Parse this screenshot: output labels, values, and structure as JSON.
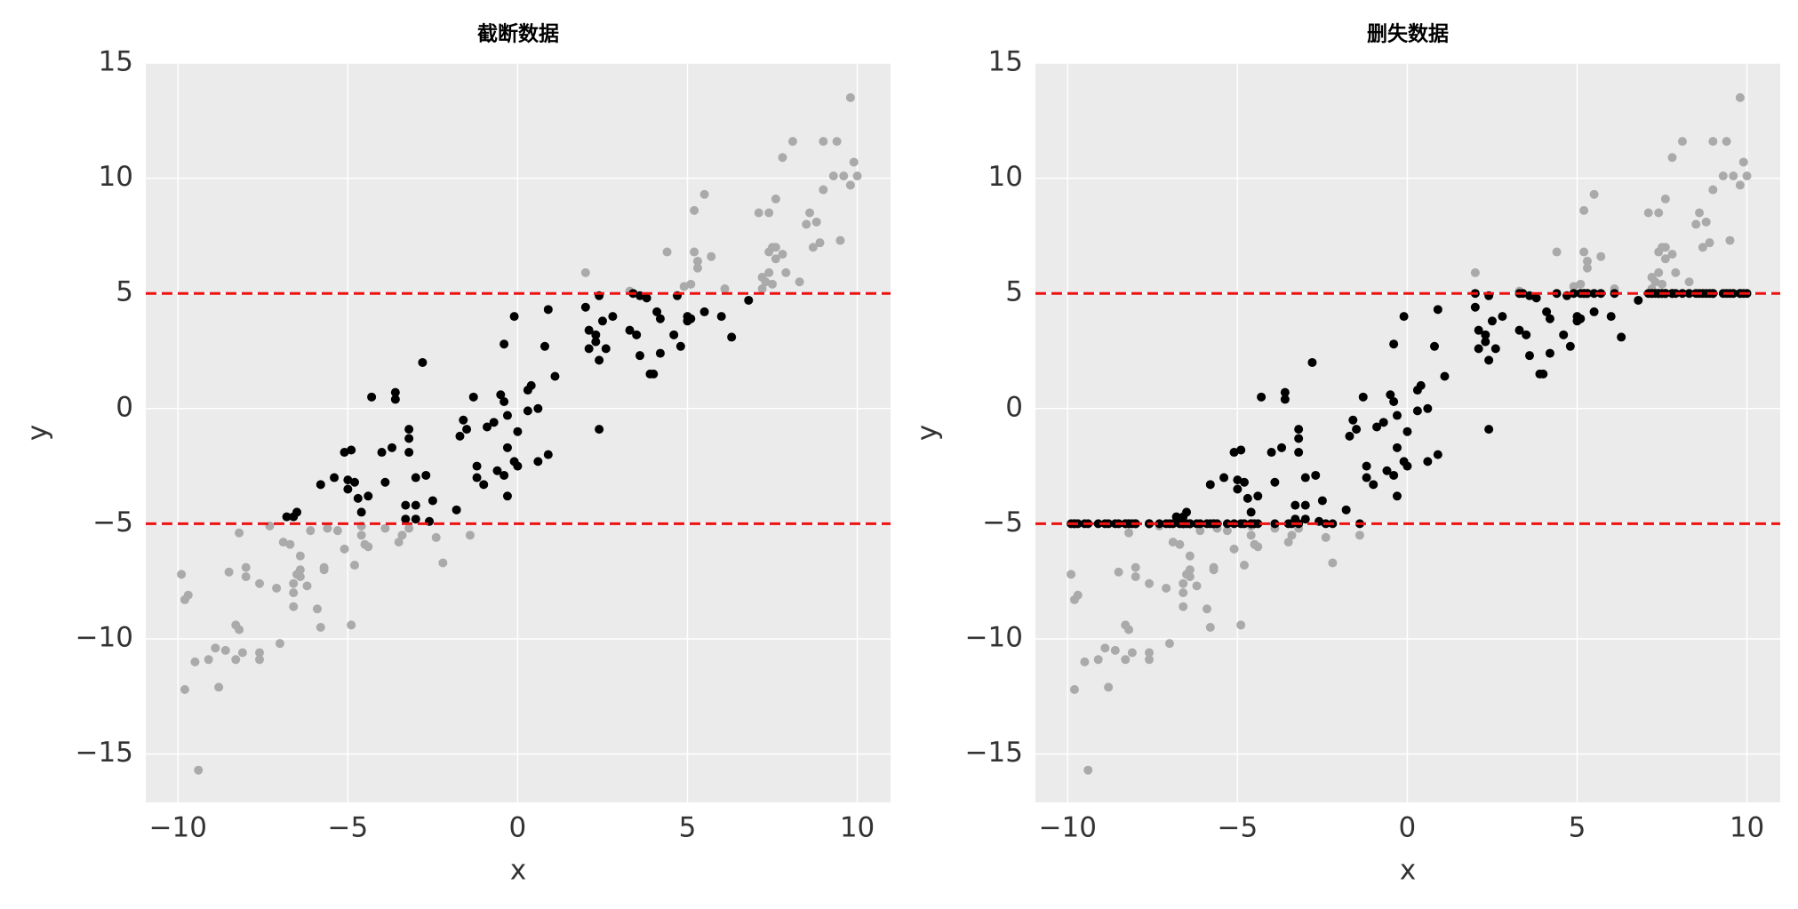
{
  "chart_data": [
    {
      "type": "scatter",
      "title": "截断数据",
      "xlabel": "x",
      "ylabel": "y",
      "xlim": [
        -10.95,
        10.98
      ],
      "ylim": [
        -17.1,
        15
      ],
      "xticks": [
        {
          "value": -10,
          "label": "−10"
        },
        {
          "value": -5,
          "label": "−5"
        },
        0,
        5,
        10
      ],
      "yticks": [
        {
          "value": -15,
          "label": "−15"
        },
        {
          "value": -10,
          "label": "−10"
        },
        {
          "value": -5,
          "label": "−5"
        },
        0,
        5,
        10,
        15
      ],
      "grid": true,
      "hlines": [
        5,
        -5
      ],
      "hline_color": "#ee1111",
      "series": [
        {
          "color": "#aaaaaa",
          "x": [
            -9.9,
            -9.8,
            -9.7,
            -9.8,
            -9.5,
            -9.4,
            -9.1,
            -8.9,
            -8.8,
            -8.6,
            -8.5,
            -8.3,
            -8.3,
            -8.2,
            -8.2,
            -8.1,
            -8.0,
            -8.0,
            -7.6,
            -7.6,
            -7.6,
            -7.3,
            -7.1,
            -7.0,
            -6.9,
            -6.7,
            -6.6,
            -6.6,
            -6.5,
            -6.6,
            -6.4,
            -6.4,
            -6.4,
            -6.2,
            -6.1,
            -5.9,
            -5.8,
            -5.7,
            -5.7,
            -5.6,
            -5.3,
            -5.1,
            -4.9,
            -4.8,
            -4.6,
            -4.5,
            -4.4,
            -4.6,
            -3.9,
            -3.5,
            -3.4,
            -3.2,
            -2.4,
            -2.2,
            -1.4,
            2.0,
            3.3,
            4.4,
            4.9,
            5.1,
            5.2,
            5.2,
            5.3,
            5.3,
            5.5,
            5.7,
            6.1,
            7.1,
            7.2,
            7.2,
            7.3,
            7.4,
            7.4,
            7.4,
            7.5,
            7.5,
            7.6,
            7.6,
            7.6,
            7.8,
            7.8,
            7.9,
            8.1,
            8.3,
            8.5,
            8.6,
            8.7,
            8.8,
            8.9,
            9.0,
            9.0,
            9.3,
            9.4,
            9.5,
            9.6,
            9.8,
            9.8,
            9.9,
            10.0
          ],
          "values": [
            -7.2,
            -8.3,
            -8.1,
            -12.2,
            -11.0,
            -15.7,
            -10.9,
            -10.4,
            -12.1,
            -10.5,
            -7.1,
            -10.9,
            -9.4,
            -9.6,
            -5.4,
            -10.6,
            -6.9,
            -7.3,
            -10.6,
            -10.9,
            -7.6,
            -5.1,
            -7.8,
            -10.2,
            -5.8,
            -5.9,
            -8.0,
            -7.6,
            -7.2,
            -8.6,
            -7.3,
            -7.0,
            -6.4,
            -7.7,
            -5.3,
            -8.7,
            -9.5,
            -7.0,
            -6.9,
            -5.2,
            -5.3,
            -6.1,
            -9.4,
            -6.8,
            -5.5,
            -5.9,
            -6.0,
            -5.1,
            -5.2,
            -5.8,
            -5.5,
            -5.2,
            -5.6,
            -6.7,
            -5.5,
            5.9,
            5.1,
            6.8,
            5.3,
            5.4,
            8.6,
            6.8,
            6.1,
            6.4,
            9.3,
            6.6,
            5.2,
            8.5,
            5.7,
            5.2,
            5.5,
            6.8,
            8.5,
            5.9,
            5.4,
            7.0,
            7.0,
            6.5,
            9.1,
            10.9,
            6.7,
            5.9,
            11.6,
            5.5,
            8.0,
            8.5,
            7.0,
            8.1,
            7.2,
            11.6,
            9.5,
            10.1,
            11.6,
            7.3,
            10.1,
            9.7,
            13.5,
            10.7,
            10.1
          ]
        },
        {
          "color": "#000000",
          "x": [
            -6.6,
            -6.5,
            -6.8,
            -5.8,
            -5.4,
            -5.0,
            -4.9,
            -5.1,
            -4.8,
            -5.0,
            -4.7,
            -4.4,
            -4.3,
            -4.0,
            -4.6,
            -3.7,
            -3.9,
            -3.6,
            -3.6,
            -3.2,
            -3.2,
            -3.2,
            -3.3,
            -3.0,
            -3.0,
            -3.3,
            -3.0,
            -2.8,
            -2.7,
            -2.5,
            -2.6,
            -1.8,
            -1.7,
            -1.6,
            -1.5,
            -1.3,
            -1.2,
            -1.2,
            -1.0,
            -0.9,
            -0.7,
            -0.6,
            -0.5,
            -0.4,
            -0.4,
            -0.4,
            -0.3,
            -0.3,
            -0.3,
            0.0,
            -0.1,
            0.0,
            -0.1,
            0.3,
            0.4,
            0.3,
            0.6,
            0.6,
            0.8,
            0.9,
            0.9,
            1.1,
            2.0,
            2.1,
            2.1,
            2.3,
            2.3,
            2.4,
            2.4,
            2.5,
            2.4,
            2.6,
            2.8,
            3.3,
            3.4,
            3.5,
            3.6,
            3.6,
            3.8,
            3.9,
            4.0,
            4.1,
            4.2,
            4.2,
            4.6,
            4.7,
            4.8,
            5.0,
            5.1,
            5.0,
            5.5,
            6.0,
            6.3,
            6.8
          ],
          "values": [
            -4.7,
            -4.5,
            -4.7,
            -3.3,
            -3.0,
            -3.1,
            -1.8,
            -1.9,
            -3.2,
            -3.5,
            -3.9,
            -3.8,
            0.5,
            -1.9,
            -4.5,
            -1.7,
            -3.2,
            0.4,
            0.7,
            -1.3,
            -0.9,
            -1.9,
            -4.2,
            -4.2,
            -4.8,
            -4.8,
            -3.0,
            2.0,
            -2.9,
            -4.0,
            -4.9,
            -4.4,
            -1.2,
            -0.5,
            -0.9,
            0.5,
            -2.5,
            -3.0,
            -3.3,
            -0.8,
            -0.6,
            -2.7,
            0.6,
            0.3,
            -2.9,
            2.8,
            -1.7,
            -3.8,
            -0.3,
            -1.0,
            -2.3,
            -2.5,
            4.0,
            0.8,
            1.0,
            -0.1,
            0.0,
            -2.3,
            2.7,
            -2.0,
            4.3,
            1.4,
            4.4,
            3.4,
            2.6,
            2.9,
            3.2,
            4.9,
            2.1,
            3.8,
            -0.9,
            2.6,
            4.0,
            3.4,
            5.0,
            3.2,
            2.3,
            4.9,
            4.8,
            1.5,
            1.5,
            4.2,
            2.4,
            3.9,
            3.2,
            4.9,
            2.7,
            4.0,
            3.9,
            3.8,
            4.2,
            4.0,
            3.1,
            4.7
          ]
        }
      ]
    },
    {
      "type": "scatter",
      "title": "删失数据",
      "xlabel": "x",
      "ylabel": "y",
      "xlim": [
        -10.95,
        10.98
      ],
      "ylim": [
        -17.1,
        15
      ],
      "xticks": [
        {
          "value": -10,
          "label": "−10"
        },
        {
          "value": -5,
          "label": "−5"
        },
        0,
        5,
        10
      ],
      "yticks": [
        {
          "value": -15,
          "label": "−15"
        },
        {
          "value": -10,
          "label": "−10"
        },
        {
          "value": -5,
          "label": "−5"
        },
        0,
        5,
        10,
        15
      ],
      "grid": true,
      "hlines": [
        5,
        -5
      ],
      "hline_color": "#ee1111",
      "series": [
        {
          "color": "#aaaaaa",
          "x": [
            -9.9,
            -9.8,
            -9.7,
            -9.8,
            -9.5,
            -9.4,
            -9.1,
            -8.9,
            -8.8,
            -8.6,
            -8.5,
            -8.3,
            -8.3,
            -8.2,
            -8.2,
            -8.1,
            -8.0,
            -8.0,
            -7.6,
            -7.6,
            -7.6,
            -7.3,
            -7.1,
            -7.0,
            -6.9,
            -6.7,
            -6.6,
            -6.6,
            -6.5,
            -6.6,
            -6.4,
            -6.4,
            -6.4,
            -6.2,
            -6.1,
            -5.9,
            -5.8,
            -5.7,
            -5.7,
            -5.6,
            -5.3,
            -5.1,
            -4.9,
            -4.8,
            -4.6,
            -4.5,
            -4.4,
            -4.6,
            -3.9,
            -3.5,
            -3.4,
            -3.2,
            -2.4,
            -2.2,
            -1.4,
            2.0,
            3.3,
            4.4,
            4.9,
            5.1,
            5.2,
            5.2,
            5.3,
            5.3,
            5.5,
            5.7,
            6.1,
            7.1,
            7.2,
            7.2,
            7.3,
            7.4,
            7.4,
            7.4,
            7.5,
            7.5,
            7.6,
            7.6,
            7.6,
            7.8,
            7.8,
            7.9,
            8.1,
            8.3,
            8.5,
            8.6,
            8.7,
            8.8,
            8.9,
            9.0,
            9.0,
            9.3,
            9.4,
            9.5,
            9.6,
            9.8,
            9.8,
            9.9,
            10.0
          ],
          "values": [
            -7.2,
            -8.3,
            -8.1,
            -12.2,
            -11.0,
            -15.7,
            -10.9,
            -10.4,
            -12.1,
            -10.5,
            -7.1,
            -10.9,
            -9.4,
            -9.6,
            -5.4,
            -10.6,
            -6.9,
            -7.3,
            -10.6,
            -10.9,
            -7.6,
            -5.1,
            -7.8,
            -10.2,
            -5.8,
            -5.9,
            -8.0,
            -7.6,
            -7.2,
            -8.6,
            -7.3,
            -7.0,
            -6.4,
            -7.7,
            -5.3,
            -8.7,
            -9.5,
            -7.0,
            -6.9,
            -5.2,
            -5.3,
            -6.1,
            -9.4,
            -6.8,
            -5.5,
            -5.9,
            -6.0,
            -5.1,
            -5.2,
            -5.8,
            -5.5,
            -5.2,
            -5.6,
            -6.7,
            -5.5,
            5.9,
            5.1,
            6.8,
            5.3,
            5.4,
            8.6,
            6.8,
            6.1,
            6.4,
            9.3,
            6.6,
            5.2,
            8.5,
            5.7,
            5.2,
            5.5,
            6.8,
            8.5,
            5.9,
            5.4,
            7.0,
            7.0,
            6.5,
            9.1,
            10.9,
            6.7,
            5.9,
            11.6,
            5.5,
            8.0,
            8.5,
            7.0,
            8.1,
            7.2,
            11.6,
            9.5,
            10.1,
            11.6,
            7.3,
            10.1,
            9.7,
            13.5,
            10.7,
            10.1
          ]
        },
        {
          "color": "#000000",
          "x": [
            -6.6,
            -6.5,
            -6.8,
            -5.8,
            -5.4,
            -5.0,
            -4.9,
            -5.1,
            -4.8,
            -5.0,
            -4.7,
            -4.4,
            -4.3,
            -4.0,
            -4.6,
            -3.7,
            -3.9,
            -3.6,
            -3.6,
            -3.2,
            -3.2,
            -3.2,
            -3.3,
            -3.0,
            -3.0,
            -3.3,
            -3.0,
            -2.8,
            -2.7,
            -2.5,
            -2.6,
            -1.8,
            -1.7,
            -1.6,
            -1.5,
            -1.3,
            -1.2,
            -1.2,
            -1.0,
            -0.9,
            -0.7,
            -0.6,
            -0.5,
            -0.4,
            -0.4,
            -0.4,
            -0.3,
            -0.3,
            -0.3,
            0.0,
            -0.1,
            0.0,
            -0.1,
            0.3,
            0.4,
            0.3,
            0.6,
            0.6,
            0.8,
            0.9,
            0.9,
            1.1,
            2.0,
            2.1,
            2.1,
            2.3,
            2.3,
            2.4,
            2.4,
            2.5,
            2.4,
            2.6,
            2.8,
            3.3,
            3.4,
            3.5,
            3.6,
            3.6,
            3.8,
            3.9,
            4.0,
            4.1,
            4.2,
            4.2,
            4.6,
            4.7,
            4.8,
            5.0,
            5.1,
            5.0,
            5.5,
            6.0,
            6.3,
            6.8
          ],
          "values": [
            -4.7,
            -4.5,
            -4.7,
            -3.3,
            -3.0,
            -3.1,
            -1.8,
            -1.9,
            -3.2,
            -3.5,
            -3.9,
            -3.8,
            0.5,
            -1.9,
            -4.5,
            -1.7,
            -3.2,
            0.4,
            0.7,
            -1.3,
            -0.9,
            -1.9,
            -4.2,
            -4.2,
            -4.8,
            -4.8,
            -3.0,
            2.0,
            -2.9,
            -4.0,
            -4.9,
            -4.4,
            -1.2,
            -0.5,
            -0.9,
            0.5,
            -2.5,
            -3.0,
            -3.3,
            -0.8,
            -0.6,
            -2.7,
            0.6,
            0.3,
            -2.9,
            2.8,
            -1.7,
            -3.8,
            -0.3,
            -1.0,
            -2.3,
            -2.5,
            4.0,
            0.8,
            1.0,
            -0.1,
            0.0,
            -2.3,
            2.7,
            -2.0,
            4.3,
            1.4,
            4.4,
            3.4,
            2.6,
            2.9,
            3.2,
            4.9,
            2.1,
            3.8,
            -0.9,
            2.6,
            4.0,
            3.4,
            5.0,
            3.2,
            2.3,
            4.9,
            4.8,
            1.5,
            1.5,
            4.2,
            2.4,
            3.9,
            3.2,
            4.9,
            2.7,
            4.0,
            3.9,
            3.8,
            4.2,
            4.0,
            3.1,
            4.7
          ]
        },
        {
          "color": "#000000",
          "x": [
            -9.9,
            -9.8,
            -9.7,
            -9.8,
            -9.5,
            -9.4,
            -9.1,
            -8.9,
            -8.8,
            -8.6,
            -8.5,
            -8.3,
            -8.3,
            -8.2,
            -8.2,
            -8.1,
            -8.0,
            -8.0,
            -7.6,
            -7.6,
            -7.6,
            -7.3,
            -7.1,
            -7.0,
            -6.9,
            -6.7,
            -6.6,
            -6.6,
            -6.5,
            -6.6,
            -6.4,
            -6.4,
            -6.4,
            -6.2,
            -6.1,
            -5.9,
            -5.8,
            -5.7,
            -5.7,
            -5.6,
            -5.3,
            -5.1,
            -4.9,
            -4.8,
            -4.6,
            -4.5,
            -4.4,
            -4.6,
            -3.9,
            -3.5,
            -3.4,
            -3.2,
            -2.4,
            -2.2,
            -1.4,
            2.0,
            3.3,
            4.4,
            4.9,
            5.1,
            5.2,
            5.2,
            5.3,
            5.3,
            5.5,
            5.7,
            6.1,
            7.1,
            7.2,
            7.2,
            7.3,
            7.4,
            7.4,
            7.4,
            7.5,
            7.5,
            7.6,
            7.6,
            7.6,
            7.8,
            7.8,
            7.9,
            8.1,
            8.3,
            8.5,
            8.6,
            8.7,
            8.8,
            8.9,
            9.0,
            9.0,
            9.3,
            9.4,
            9.5,
            9.6,
            9.8,
            9.8,
            9.9,
            10.0
          ],
          "values": [
            -5,
            -5,
            -5,
            -5,
            -5,
            -5,
            -5,
            -5,
            -5,
            -5,
            -5,
            -5,
            -5,
            -5,
            -5,
            -5,
            -5,
            -5,
            -5,
            -5,
            -5,
            -5,
            -5,
            -5,
            -5,
            -5,
            -5,
            -5,
            -5,
            -5,
            -5,
            -5,
            -5,
            -5,
            -5,
            -5,
            -5,
            -5,
            -5,
            -5,
            -5,
            -5,
            -5,
            -5,
            -5,
            -5,
            -5,
            -5,
            -5,
            -5,
            -5,
            -5,
            -5,
            -5,
            -5,
            5,
            5,
            5,
            5,
            5,
            5,
            5,
            5,
            5,
            5,
            5,
            5,
            5,
            5,
            5,
            5,
            5,
            5,
            5,
            5,
            5,
            5,
            5,
            5,
            5,
            5,
            5,
            5,
            5,
            5,
            5,
            5,
            5,
            5,
            5,
            5,
            5,
            5,
            5,
            5,
            5,
            5,
            5,
            5
          ]
        }
      ]
    }
  ]
}
